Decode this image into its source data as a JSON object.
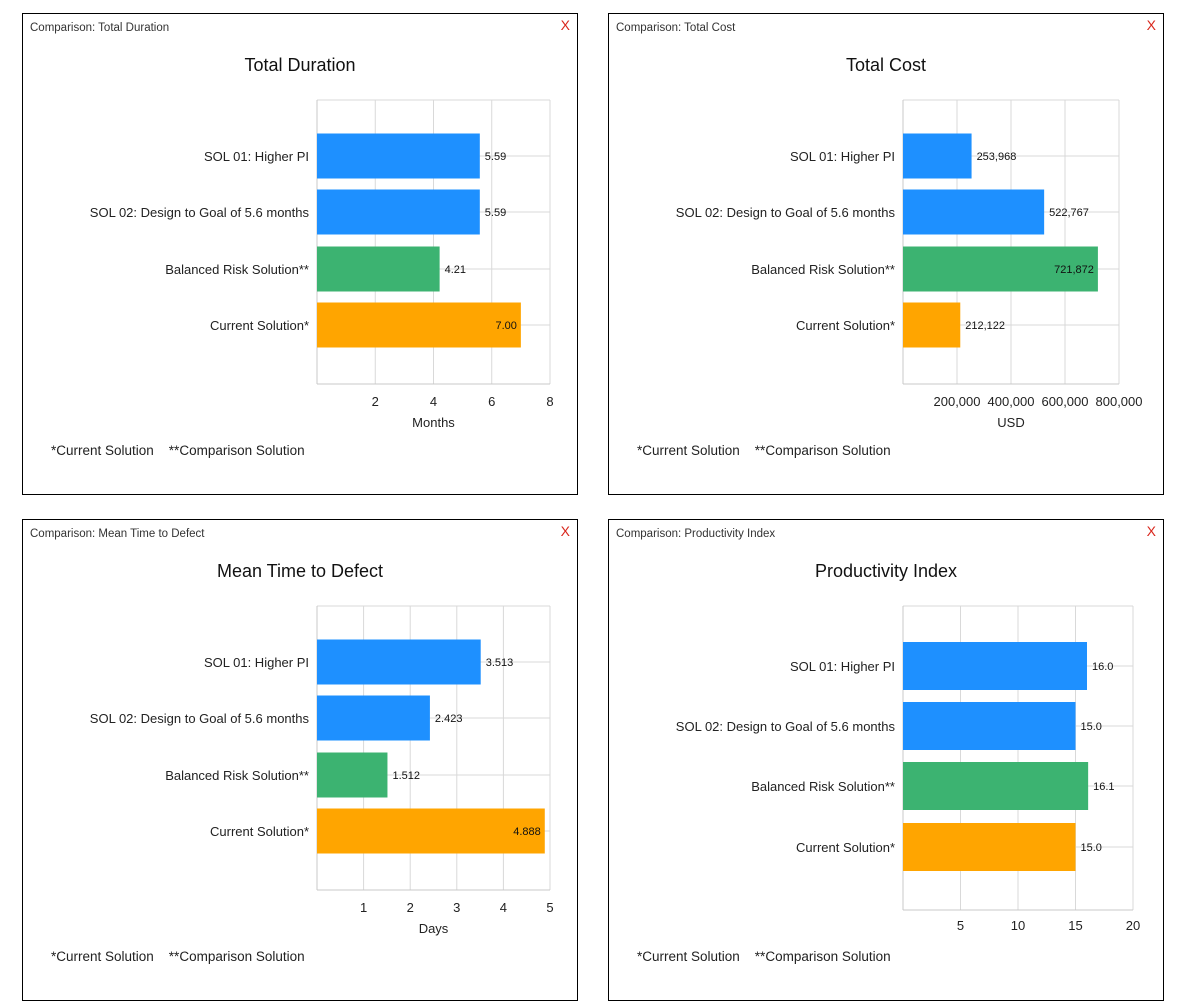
{
  "footnote": "*Current Solution    **Comparison Solution",
  "colors": {
    "sol01": "#1e90ff",
    "sol02": "#1e90ff",
    "balanced": "#3cb371",
    "current": "#ffa500",
    "close": "#d9261c",
    "grid": "#d9d9d9"
  },
  "panels": [
    {
      "window_title": "Comparison: Total Duration",
      "close_label": "X",
      "chart_data": {
        "type": "bar",
        "orientation": "horizontal",
        "title": "Total Duration",
        "xlabel": "Months",
        "categories": [
          "SOL 01:  Higher PI",
          "SOL 02:  Design to Goal of 5.6 months",
          "Balanced Risk Solution**",
          "Current Solution*"
        ],
        "values": [
          5.59,
          5.59,
          4.21,
          7.0
        ],
        "value_labels": [
          "5.59",
          "5.59",
          "4.21",
          "7.00"
        ],
        "label_inside": [
          false,
          false,
          false,
          true
        ],
        "colors": [
          "#1e90ff",
          "#1e90ff",
          "#3cb371",
          "#ffa500"
        ],
        "xlim": [
          0,
          8
        ],
        "ticks": [
          2,
          4,
          6,
          8
        ],
        "tick_labels": [
          "2",
          "4",
          "6",
          "8"
        ],
        "grid": true
      }
    },
    {
      "window_title": "Comparison: Total Cost",
      "close_label": "X",
      "chart_data": {
        "type": "bar",
        "orientation": "horizontal",
        "title": "Total Cost",
        "xlabel": "USD",
        "categories": [
          "SOL 01:  Higher PI",
          "SOL 02:  Design to Goal of 5.6 months",
          "Balanced Risk Solution**",
          "Current Solution*"
        ],
        "values": [
          253968,
          522767,
          721872,
          212122
        ],
        "value_labels": [
          "253,968",
          "522,767",
          "721,872",
          "212,122"
        ],
        "label_inside": [
          false,
          false,
          true,
          false
        ],
        "colors": [
          "#1e90ff",
          "#1e90ff",
          "#3cb371",
          "#ffa500"
        ],
        "xlim": [
          0,
          800000
        ],
        "ticks": [
          200000,
          400000,
          600000,
          800000
        ],
        "tick_labels": [
          "200,000",
          "400,000",
          "600,000",
          "800,000"
        ],
        "grid": true
      }
    },
    {
      "window_title": "Comparison: Mean Time to Defect",
      "close_label": "X",
      "chart_data": {
        "type": "bar",
        "orientation": "horizontal",
        "title": "Mean Time to Defect",
        "xlabel": "Days",
        "categories": [
          "SOL 01:  Higher PI",
          "SOL 02:  Design to Goal of 5.6 months",
          "Balanced Risk Solution**",
          "Current Solution*"
        ],
        "values": [
          3.513,
          2.423,
          1.512,
          4.888
        ],
        "value_labels": [
          "3.513",
          "2.423",
          "1.512",
          "4.888"
        ],
        "label_inside": [
          false,
          false,
          false,
          true
        ],
        "colors": [
          "#1e90ff",
          "#1e90ff",
          "#3cb371",
          "#ffa500"
        ],
        "xlim": [
          0,
          5
        ],
        "ticks": [
          1,
          2,
          3,
          4,
          5
        ],
        "tick_labels": [
          "1",
          "2",
          "3",
          "4",
          "5"
        ],
        "grid": true
      }
    },
    {
      "window_title": "Comparison: Productivity Index",
      "close_label": "X",
      "chart_data": {
        "type": "bar",
        "orientation": "horizontal",
        "title": "Productivity Index",
        "xlabel": "",
        "categories": [
          "SOL 01:  Higher PI",
          "SOL 02:  Design to Goal of 5.6 months",
          "Balanced Risk Solution**",
          "Current Solution*"
        ],
        "values": [
          16.0,
          15.0,
          16.1,
          15.0
        ],
        "value_labels": [
          "16.0",
          "15.0",
          "16.1",
          "15.0"
        ],
        "label_inside": [
          false,
          false,
          false,
          false
        ],
        "colors": [
          "#1e90ff",
          "#1e90ff",
          "#3cb371",
          "#ffa500"
        ],
        "xlim": [
          0,
          20
        ],
        "ticks": [
          5,
          10,
          15,
          20
        ],
        "tick_labels": [
          "5",
          "10",
          "15",
          "20"
        ],
        "grid": true
      }
    }
  ]
}
